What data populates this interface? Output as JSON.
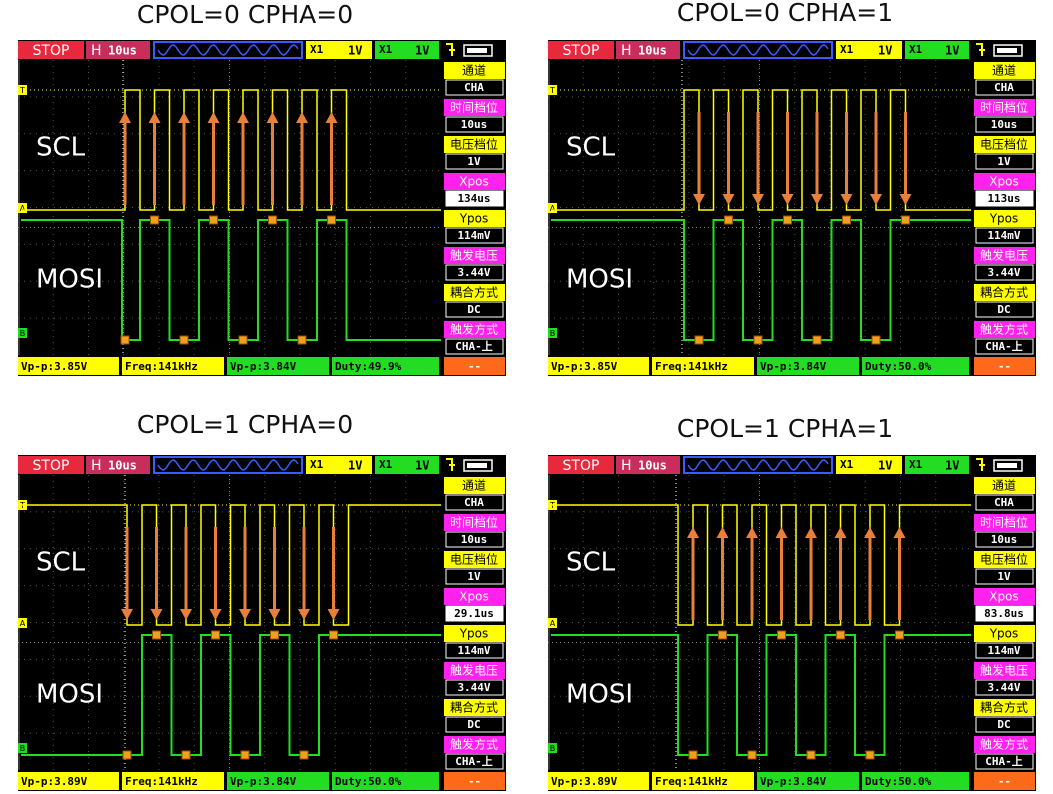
{
  "panels": [
    {
      "title": "CPOL=0 CPHA=0",
      "status": "STOP",
      "timebase_label": "H",
      "timebase": "10us",
      "ch1_probe": "X1",
      "ch1_scale": "1V",
      "ch2_probe": "X1",
      "ch2_scale": "1V",
      "menu": [
        {
          "label": "通道",
          "value": "CHA"
        },
        {
          "label": "时间档位",
          "value": "10us"
        },
        {
          "label": "电压档位",
          "value": "1V"
        },
        {
          "label": "Xpos",
          "value": "134us"
        },
        {
          "label": "Ypos",
          "value": "114mV"
        },
        {
          "label": "触发电压",
          "value": "3.44V"
        },
        {
          "label": "耦合方式",
          "value": "DC"
        },
        {
          "label": "触发方式",
          "value": "CHA-上"
        }
      ],
      "measurements": [
        "Vp-p:3.85V",
        "Freq:141kHz",
        "Vp-p:3.84V",
        "Duty:49.9%",
        "--"
      ],
      "signal_labels": [
        "SCL",
        "MOSI"
      ],
      "markers": [
        "T",
        "A",
        "B"
      ]
    },
    {
      "title": "CPOL=0 CPHA=1",
      "status": "STOP",
      "timebase_label": "H",
      "timebase": "10us",
      "ch1_probe": "X1",
      "ch1_scale": "1V",
      "ch2_probe": "X1",
      "ch2_scale": "1V",
      "menu": [
        {
          "label": "通道",
          "value": "CHA"
        },
        {
          "label": "时间档位",
          "value": "10us"
        },
        {
          "label": "电压档位",
          "value": "1V"
        },
        {
          "label": "Xpos",
          "value": "113us"
        },
        {
          "label": "Ypos",
          "value": "114mV"
        },
        {
          "label": "触发电压",
          "value": "3.44V"
        },
        {
          "label": "耦合方式",
          "value": "DC"
        },
        {
          "label": "触发方式",
          "value": "CHA-上"
        }
      ],
      "measurements": [
        "Vp-p:3.85V",
        "Freq:141kHz",
        "Vp-p:3.84V",
        "Duty:50.0%",
        "--"
      ],
      "signal_labels": [
        "SCL",
        "MOSI"
      ],
      "markers": [
        "T",
        "A",
        "B"
      ]
    },
    {
      "title": "CPOL=1 CPHA=0",
      "status": "STOP",
      "timebase_label": "H",
      "timebase": "10us",
      "ch1_probe": "X1",
      "ch1_scale": "1V",
      "ch2_probe": "X1",
      "ch2_scale": "1V",
      "menu": [
        {
          "label": "通道",
          "value": "CHA"
        },
        {
          "label": "时间档位",
          "value": "10us"
        },
        {
          "label": "电压档位",
          "value": "1V"
        },
        {
          "label": "Xpos",
          "value": "29.1us"
        },
        {
          "label": "Ypos",
          "value": "114mV"
        },
        {
          "label": "触发电压",
          "value": "3.44V"
        },
        {
          "label": "耦合方式",
          "value": "DC"
        },
        {
          "label": "触发方式",
          "value": "CHA-上"
        }
      ],
      "measurements": [
        "Vp-p:3.89V",
        "Freq:141kHz",
        "Vp-p:3.84V",
        "Duty:50.0%",
        "--"
      ],
      "signal_labels": [
        "SCL",
        "MOSI"
      ],
      "markers": [
        "T",
        "A",
        "B"
      ]
    },
    {
      "title": "CPOL=1 CPHA=1",
      "status": "STOP",
      "timebase_label": "H",
      "timebase": "10us",
      "ch1_probe": "X1",
      "ch1_scale": "1V",
      "ch2_probe": "X1",
      "ch2_scale": "1V",
      "menu": [
        {
          "label": "通道",
          "value": "CHA"
        },
        {
          "label": "时间档位",
          "value": "10us"
        },
        {
          "label": "电压档位",
          "value": "1V"
        },
        {
          "label": "Xpos",
          "value": "83.8us"
        },
        {
          "label": "Ypos",
          "value": "114mV"
        },
        {
          "label": "触发电压",
          "value": "3.44V"
        },
        {
          "label": "耦合方式",
          "value": "DC"
        },
        {
          "label": "触发方式",
          "value": "CHA-上"
        }
      ],
      "measurements": [
        "Vp-p:3.89V",
        "Freq:141kHz",
        "Vp-p:3.84V",
        "Duty:50.0%",
        "--"
      ],
      "signal_labels": [
        "SCL",
        "MOSI"
      ],
      "markers": [
        "T",
        "A",
        "B"
      ]
    }
  ]
}
